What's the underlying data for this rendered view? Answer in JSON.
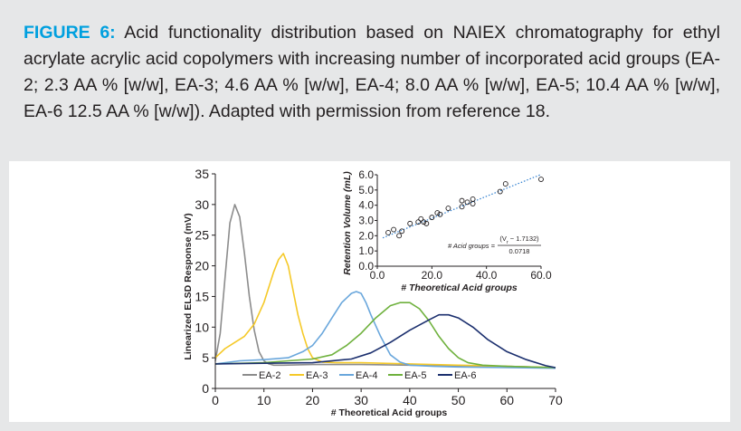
{
  "caption": {
    "label": "FIGURE 6:",
    "text": "Acid functionality distribution based on NAIEX chromatography for ethyl acrylate acrylic acid copolymers with increasing number of incorporated acid groups (EA-2; 2.3 AA % [w/w], EA-3; 4.6 AA % [w/w], EA-4; 8.0 AA % [w/w], EA-5; 10.4 AA % [w/w], EA-6 12.5 AA % [w/w]). Adapted with permission from reference 18."
  },
  "colors": {
    "accent": "#00a0df",
    "EA-2": "#8c8c8c",
    "EA-3": "#f5c928",
    "EA-4": "#6aa7dc",
    "EA-5": "#6fb13d",
    "EA-6": "#1b2f6e",
    "fit": "#2f7fd0"
  },
  "chart_data": [
    {
      "type": "line",
      "title": "",
      "xlabel": "# Theoretical Acid groups",
      "ylabel": "Linearized ELSD Response (mV)",
      "xlim": [
        0,
        70
      ],
      "ylim": [
        0,
        35
      ],
      "xticks": [
        "0",
        "10",
        "20",
        "30",
        "40",
        "50",
        "60",
        "70"
      ],
      "yticks": [
        "0",
        "5",
        "10",
        "15",
        "20",
        "25",
        "30",
        "35"
      ],
      "legend": "bottom-left",
      "series": [
        {
          "name": "EA-2",
          "x": [
            0,
            1,
            2,
            3,
            4,
            5,
            6,
            7,
            8,
            9,
            10,
            11,
            12,
            14,
            20,
            30,
            40,
            50,
            60,
            70
          ],
          "values": [
            4.5,
            9,
            18,
            27,
            30,
            28,
            22,
            15,
            9.5,
            6,
            4.5,
            4,
            3.8,
            3.8,
            3.9,
            3.9,
            3.8,
            3.7,
            3.6,
            3.4
          ]
        },
        {
          "name": "EA-3",
          "x": [
            0,
            2,
            4,
            6,
            8,
            10,
            12,
            13,
            14,
            15,
            16,
            17,
            18,
            19,
            20,
            22,
            25,
            30,
            40,
            50,
            60,
            70
          ],
          "values": [
            5,
            6.5,
            7.5,
            8.5,
            10.5,
            14,
            19,
            21,
            22,
            20,
            16,
            12,
            9,
            6.5,
            5,
            4.3,
            4.2,
            4.2,
            4,
            3.8,
            3.6,
            3.4
          ]
        },
        {
          "name": "EA-4",
          "x": [
            0,
            5,
            10,
            15,
            18,
            20,
            22,
            24,
            26,
            28,
            29,
            30,
            31,
            32,
            34,
            36,
            38,
            40,
            45,
            50,
            60,
            70
          ],
          "values": [
            4,
            4.5,
            4.7,
            5,
            6,
            7,
            9,
            11.5,
            14,
            15.5,
            15.8,
            15.5,
            14,
            12,
            8.5,
            5.5,
            4.3,
            3.8,
            3.6,
            3.5,
            3.4,
            3.3
          ]
        },
        {
          "name": "EA-5",
          "x": [
            0,
            10,
            15,
            20,
            24,
            27,
            30,
            33,
            36,
            38,
            40,
            42,
            44,
            46,
            48,
            50,
            52,
            55,
            60,
            70
          ],
          "values": [
            4,
            4.2,
            4.5,
            4.8,
            5.5,
            7,
            9,
            11.5,
            13.5,
            14,
            14,
            13,
            11,
            8.5,
            6.5,
            5,
            4.2,
            3.8,
            3.6,
            3.4
          ]
        },
        {
          "name": "EA-6",
          "x": [
            0,
            10,
            20,
            28,
            32,
            36,
            40,
            44,
            46,
            48,
            50,
            53,
            56,
            60,
            64,
            68,
            70
          ],
          "values": [
            4,
            4.1,
            4.2,
            4.8,
            5.8,
            7.5,
            9.5,
            11.2,
            12,
            12,
            11.5,
            10,
            8,
            6,
            4.7,
            3.7,
            3.4
          ]
        }
      ]
    },
    {
      "type": "scatter",
      "xlabel": "# Theoretical Acid groups",
      "ylabel": "Retention Volume (mL)",
      "xlim": [
        0,
        60
      ],
      "ylim": [
        0,
        6
      ],
      "xticks": [
        "0.0",
        "20.0",
        "40.0",
        "60.0"
      ],
      "yticks": [
        "0.0",
        "1.0",
        "2.0",
        "3.0",
        "4.0",
        "5.0",
        "6.0"
      ],
      "equation": {
        "lhs": "# Acid groups =",
        "numerator": "(V",
        "subscript": "r",
        "numerator_rest": " − 1.7132)",
        "denominator": "0.0718"
      },
      "points": [
        [
          4,
          2.2
        ],
        [
          6,
          2.4
        ],
        [
          8,
          2.0
        ],
        [
          9,
          2.3
        ],
        [
          12,
          2.8
        ],
        [
          15,
          2.9
        ],
        [
          16,
          3.1
        ],
        [
          17,
          2.9
        ],
        [
          18,
          2.8
        ],
        [
          20,
          3.2
        ],
        [
          22,
          3.5
        ],
        [
          23,
          3.4
        ],
        [
          26,
          3.8
        ],
        [
          31,
          3.9
        ],
        [
          31,
          4.3
        ],
        [
          33,
          4.2
        ],
        [
          35,
          4.1
        ],
        [
          35,
          4.4
        ],
        [
          45,
          4.9
        ],
        [
          47,
          5.4
        ],
        [
          60,
          5.7
        ]
      ],
      "fit": {
        "x": [
          2,
          60
        ],
        "y": [
          1.86,
          6.02
        ]
      }
    }
  ]
}
